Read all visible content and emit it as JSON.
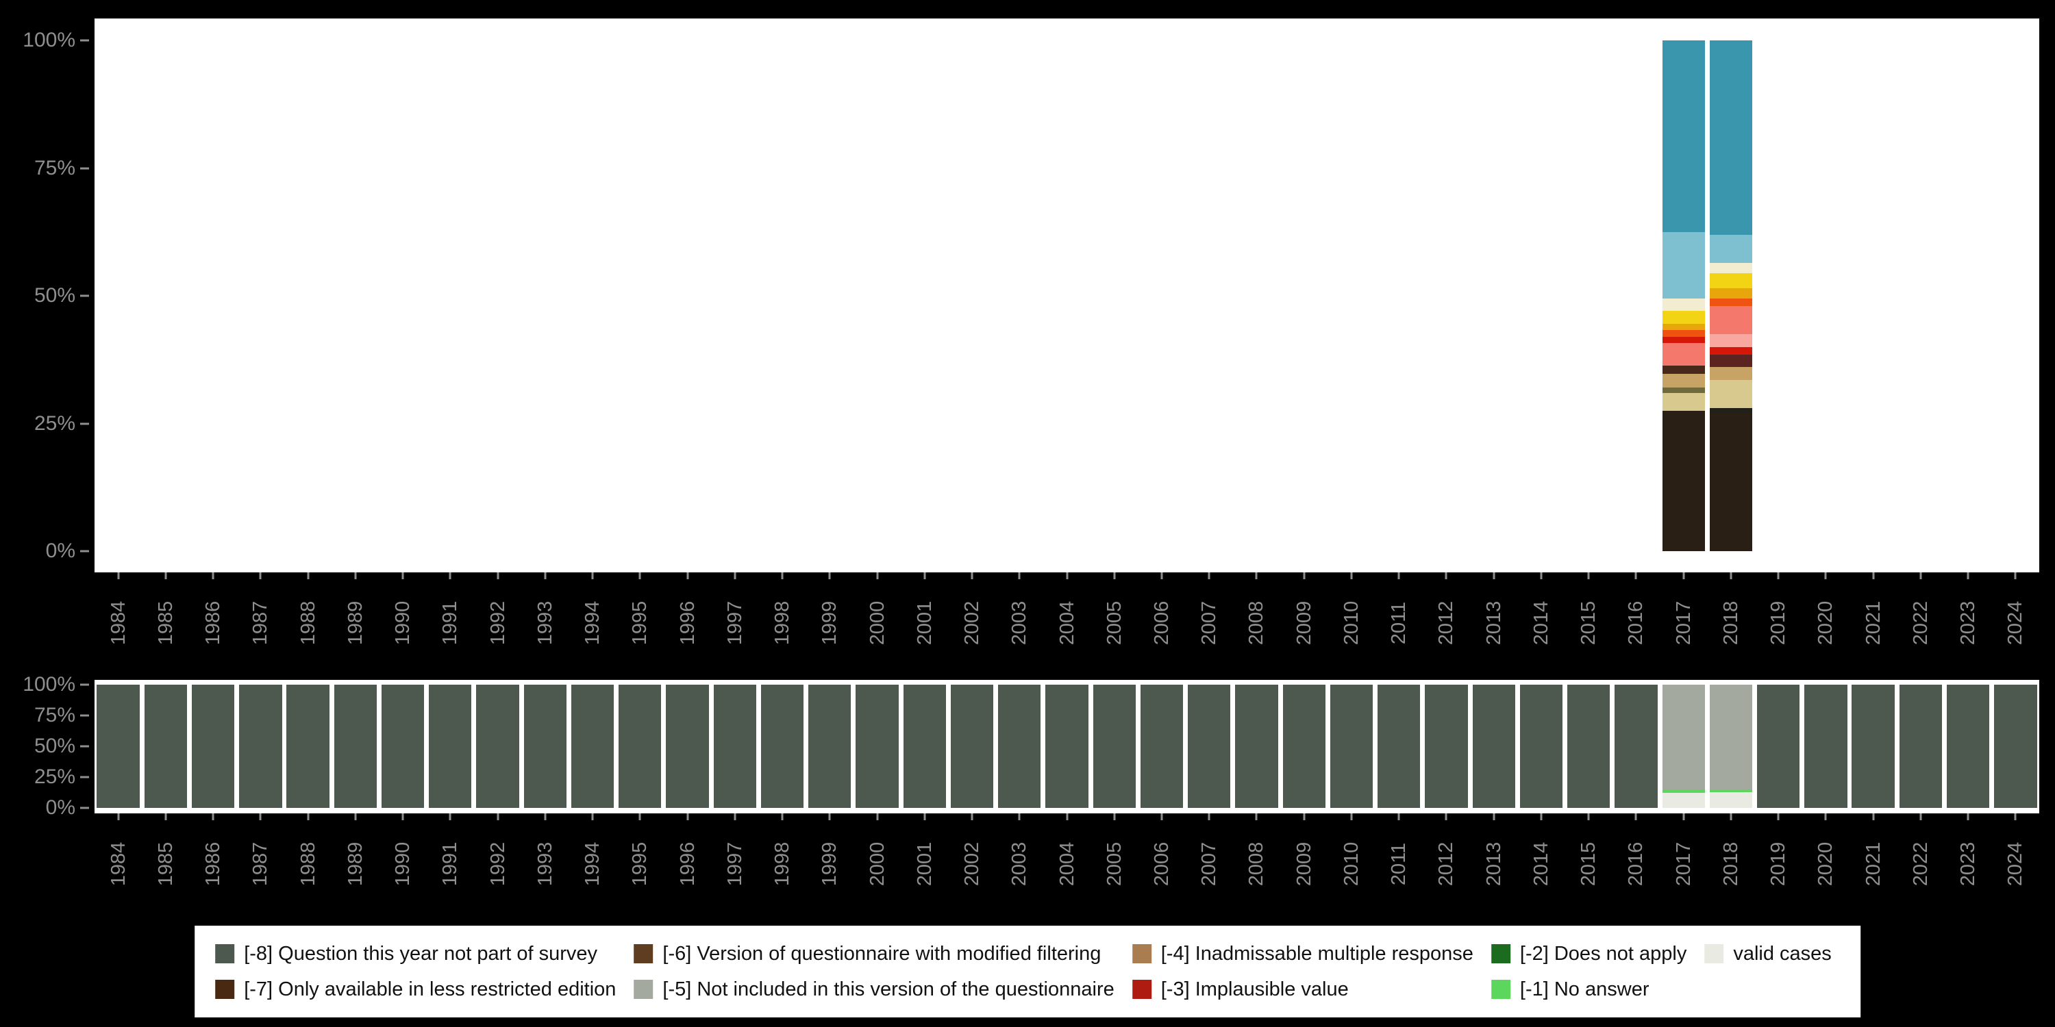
{
  "colors": {
    "background": "#000000",
    "plot_background": "#ffffff",
    "axis_text": "#8f8f8f",
    "legend_background": "#ffffff",
    "legend_text": "#111111"
  },
  "years": [
    "1984",
    "1985",
    "1986",
    "1987",
    "1988",
    "1989",
    "1990",
    "1991",
    "1992",
    "1993",
    "1994",
    "1995",
    "1996",
    "1997",
    "1998",
    "1999",
    "2000",
    "2001",
    "2002",
    "2003",
    "2004",
    "2005",
    "2006",
    "2007",
    "2008",
    "2009",
    "2010",
    "2011",
    "2012",
    "2013",
    "2014",
    "2015",
    "2016",
    "2017",
    "2018",
    "2019",
    "2020",
    "2021",
    "2022",
    "2023",
    "2024"
  ],
  "legend": {
    "items": [
      {
        "label": "[-8] Question this year not part of survey",
        "color": "#4d584e"
      },
      {
        "label": "[-6] Version of questionnaire with modified filtering",
        "color": "#5f3d20"
      },
      {
        "label": "[-4] Inadmissable multiple response",
        "color": "#aa7d50"
      },
      {
        "label": "[-2] Does not apply",
        "color": "#1d6b1f"
      },
      {
        "label": "valid cases",
        "color": "#e9ebe3"
      },
      {
        "label": "[-7] Only available in less restricted edition",
        "color": "#4a2912"
      },
      {
        "label": "[-5] Not included in this version of the questionnaire",
        "color": "#a3a99f"
      },
      {
        "label": "[-3] Implausible value",
        "color": "#ae1c11"
      },
      {
        "label": "[-1] No answer",
        "color": "#5cd65c"
      }
    ]
  },
  "chart_data": [
    {
      "type": "bar",
      "stacked": true,
      "name": "category-distribution-by-year",
      "title": "",
      "xlabel": "",
      "ylabel": "",
      "ylim": [
        0,
        100
      ],
      "y_ticks": [
        "100%",
        "75%",
        "50%",
        "25%",
        "0%"
      ],
      "categories": [
        "1984",
        "1985",
        "1986",
        "1987",
        "1988",
        "1989",
        "1990",
        "1991",
        "1992",
        "1993",
        "1994",
        "1995",
        "1996",
        "1997",
        "1998",
        "1999",
        "2000",
        "2001",
        "2002",
        "2003",
        "2004",
        "2005",
        "2006",
        "2007",
        "2008",
        "2009",
        "2010",
        "2011",
        "2012",
        "2013",
        "2014",
        "2015",
        "2016",
        "2017",
        "2018",
        "2019",
        "2020",
        "2021",
        "2022",
        "2023",
        "2024"
      ],
      "default_bar": null,
      "bars": {
        "2017": [
          {
            "color": "#2a1f15",
            "value": 27.5
          },
          {
            "color": "#d8c98f",
            "value": 3.5
          },
          {
            "color": "#6e6a3c",
            "value": 1.0
          },
          {
            "color": "#c7a365",
            "value": 2.7
          },
          {
            "color": "#47281a",
            "value": 1.6
          },
          {
            "color": "#f4786c",
            "value": 4.5
          },
          {
            "color": "#d41708",
            "value": 1.2
          },
          {
            "color": "#ee5310",
            "value": 1.3
          },
          {
            "color": "#e8a60c",
            "value": 1.2
          },
          {
            "color": "#f2d414",
            "value": 2.5
          },
          {
            "color": "#f2ecd0",
            "value": 2.5
          },
          {
            "color": "#7fc0d0",
            "value": 13.0
          },
          {
            "color": "#3a96ac",
            "value": 37.5
          }
        ],
        "2018": [
          {
            "color": "#2a1f15",
            "value": 27.0
          },
          {
            "color": "#23201a",
            "value": 1.0
          },
          {
            "color": "#d8c98f",
            "value": 5.5
          },
          {
            "color": "#c7a365",
            "value": 2.5
          },
          {
            "color": "#5c2420",
            "value": 2.5
          },
          {
            "color": "#d41708",
            "value": 1.5
          },
          {
            "color": "#f9a8a0",
            "value": 2.5
          },
          {
            "color": "#f4786c",
            "value": 5.5
          },
          {
            "color": "#ee5310",
            "value": 1.5
          },
          {
            "color": "#e8a60c",
            "value": 2.0
          },
          {
            "color": "#f2d414",
            "value": 3.0
          },
          {
            "color": "#f2ecd0",
            "value": 2.0
          },
          {
            "color": "#7fc0d0",
            "value": 5.5
          },
          {
            "color": "#3a96ac",
            "value": 38.0
          }
        ]
      }
    },
    {
      "type": "bar",
      "stacked": true,
      "name": "missing-values-by-year",
      "title": "",
      "xlabel": "",
      "ylabel": "",
      "ylim": [
        0,
        100
      ],
      "y_ticks": [
        "100%",
        "75%",
        "50%",
        "25%",
        "0%"
      ],
      "categories": [
        "1984",
        "1985",
        "1986",
        "1987",
        "1988",
        "1989",
        "1990",
        "1991",
        "1992",
        "1993",
        "1994",
        "1995",
        "1996",
        "1997",
        "1998",
        "1999",
        "2000",
        "2001",
        "2002",
        "2003",
        "2004",
        "2005",
        "2006",
        "2007",
        "2008",
        "2009",
        "2010",
        "2011",
        "2012",
        "2013",
        "2014",
        "2015",
        "2016",
        "2017",
        "2018",
        "2019",
        "2020",
        "2021",
        "2022",
        "2023",
        "2024"
      ],
      "default_bar": [
        {
          "label": "[-8] Question this year not part of survey",
          "color": "#4d584e",
          "value": 100
        }
      ],
      "bars": {
        "2017": [
          {
            "label": "valid cases",
            "color": "#e9ebe3",
            "value": 12
          },
          {
            "label": "[-1] No answer",
            "color": "#5cd65c",
            "value": 3
          },
          {
            "label": "[-5] Not included in this version of the questionnaire",
            "color": "#a3a99f",
            "value": 85
          }
        ],
        "2018": [
          {
            "label": "valid cases",
            "color": "#e9ebe3",
            "value": 13
          },
          {
            "label": "[-1] No answer",
            "color": "#5cd65c",
            "value": 2
          },
          {
            "label": "[-5] Not included in this version of the questionnaire",
            "color": "#a3a99f",
            "value": 85
          }
        ]
      }
    }
  ]
}
